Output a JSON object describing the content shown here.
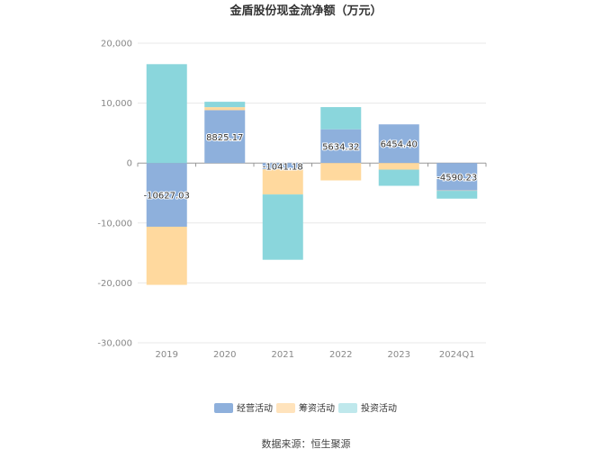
{
  "chart_data": {
    "type": "bar",
    "stacked": true,
    "title": "金盾股份现金流净额（万元）",
    "categories": [
      "2019",
      "2020",
      "2021",
      "2022",
      "2023",
      "2024Q1"
    ],
    "series": [
      {
        "name": "经营活动",
        "color": "#8eb0dc",
        "values": [
          -10627.03,
          8825.17,
          -1041.18,
          5634.32,
          6454.4,
          -4590.23
        ],
        "labels": [
          "-10627.03",
          "8825.17",
          "-1041.18",
          "5634.32",
          "6454.40",
          "-4590.23"
        ]
      },
      {
        "name": "筹资活动",
        "color": "#ffd99e",
        "values": [
          -9700,
          500,
          -4200,
          -2900,
          -1100,
          -50
        ]
      },
      {
        "name": "投资活动",
        "color": "#8ad6dc",
        "values": [
          16500,
          900,
          -10900,
          3700,
          -2700,
          -1300
        ]
      }
    ],
    "yticks": [
      "20,000",
      "10,000",
      "0",
      "-10,000",
      "-20,000",
      "-30,000"
    ],
    "ylim": [
      -30000,
      20000
    ],
    "grid": true,
    "legend_position": "bottom",
    "legend_colors": [
      "#8eb0dc",
      "#ffe3bc",
      "#bfe8ec"
    ]
  },
  "source_text": "数据来源：恒生聚源"
}
